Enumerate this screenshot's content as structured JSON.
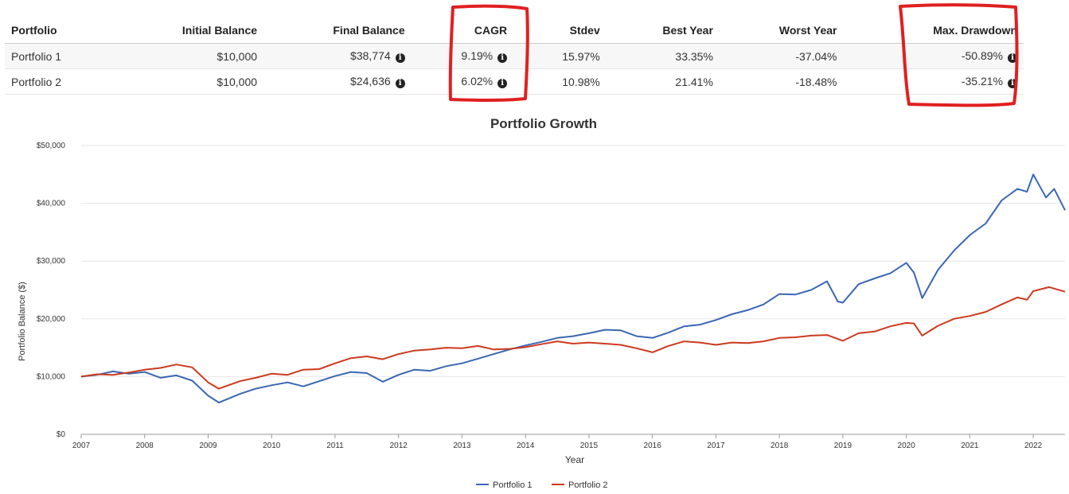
{
  "table": {
    "headers": [
      "Portfolio",
      "Initial Balance",
      "Final Balance",
      "CAGR",
      "Stdev",
      "Best Year",
      "Worst Year",
      "Max. Drawdown"
    ],
    "rows": [
      {
        "name": "Portfolio 1",
        "initial": "$10,000",
        "final": "$38,774",
        "cagr": "9.19%",
        "stdev": "15.97%",
        "best": "33.35%",
        "worst": "-37.04%",
        "maxdd": "-50.89%"
      },
      {
        "name": "Portfolio 2",
        "initial": "$10,000",
        "final": "$24,636",
        "cagr": "6.02%",
        "stdev": "10.98%",
        "best": "21.41%",
        "worst": "-18.48%",
        "maxdd": "-35.21%"
      }
    ]
  },
  "annotation_color": "#e02020",
  "chart_data": {
    "type": "line",
    "title": "Portfolio Growth",
    "xlabel": "Year",
    "ylabel": "Portfolio Balance ($)",
    "xlim": [
      2007,
      2022.5
    ],
    "ylim": [
      0,
      50000
    ],
    "x_ticks": [
      2007,
      2008,
      2009,
      2010,
      2011,
      2012,
      2013,
      2014,
      2015,
      2016,
      2017,
      2018,
      2019,
      2020,
      2021,
      2022
    ],
    "y_ticks": [
      0,
      10000,
      20000,
      30000,
      40000,
      50000
    ],
    "y_tick_labels": [
      "$0",
      "$10,000",
      "$20,000",
      "$30,000",
      "$40,000",
      "$50,000"
    ],
    "grid": true,
    "legend_position": "bottom-center",
    "series": [
      {
        "name": "Portfolio 1",
        "color": "#3a67b4",
        "points": [
          [
            2007.0,
            10000
          ],
          [
            2007.25,
            10300
          ],
          [
            2007.5,
            10900
          ],
          [
            2007.75,
            10500
          ],
          [
            2008.0,
            10800
          ],
          [
            2008.25,
            9800
          ],
          [
            2008.5,
            10200
          ],
          [
            2008.75,
            9300
          ],
          [
            2009.0,
            6700
          ],
          [
            2009.17,
            5500
          ],
          [
            2009.5,
            7000
          ],
          [
            2009.75,
            7900
          ],
          [
            2010.0,
            8500
          ],
          [
            2010.25,
            9000
          ],
          [
            2010.5,
            8300
          ],
          [
            2010.75,
            9200
          ],
          [
            2011.0,
            10100
          ],
          [
            2011.25,
            10800
          ],
          [
            2011.5,
            10600
          ],
          [
            2011.75,
            9100
          ],
          [
            2012.0,
            10300
          ],
          [
            2012.25,
            11200
          ],
          [
            2012.5,
            11000
          ],
          [
            2012.75,
            11800
          ],
          [
            2013.0,
            12300
          ],
          [
            2013.25,
            13100
          ],
          [
            2013.5,
            13900
          ],
          [
            2013.75,
            14700
          ],
          [
            2014.0,
            15400
          ],
          [
            2014.25,
            16000
          ],
          [
            2014.5,
            16700
          ],
          [
            2014.75,
            17000
          ],
          [
            2015.0,
            17500
          ],
          [
            2015.25,
            18100
          ],
          [
            2015.5,
            18000
          ],
          [
            2015.75,
            17000
          ],
          [
            2016.0,
            16700
          ],
          [
            2016.25,
            17600
          ],
          [
            2016.5,
            18700
          ],
          [
            2016.75,
            19000
          ],
          [
            2017.0,
            19800
          ],
          [
            2017.25,
            20800
          ],
          [
            2017.5,
            21500
          ],
          [
            2017.75,
            22500
          ],
          [
            2018.0,
            24300
          ],
          [
            2018.25,
            24200
          ],
          [
            2018.5,
            25000
          ],
          [
            2018.75,
            26500
          ],
          [
            2018.92,
            23000
          ],
          [
            2019.0,
            22800
          ],
          [
            2019.25,
            26000
          ],
          [
            2019.5,
            27000
          ],
          [
            2019.75,
            27900
          ],
          [
            2020.0,
            29700
          ],
          [
            2020.12,
            28000
          ],
          [
            2020.25,
            23600
          ],
          [
            2020.5,
            28500
          ],
          [
            2020.75,
            31800
          ],
          [
            2021.0,
            34500
          ],
          [
            2021.25,
            36500
          ],
          [
            2021.5,
            40500
          ],
          [
            2021.75,
            42500
          ],
          [
            2021.9,
            42000
          ],
          [
            2022.0,
            45000
          ],
          [
            2022.2,
            41000
          ],
          [
            2022.33,
            42500
          ],
          [
            2022.5,
            38800
          ]
        ]
      },
      {
        "name": "Portfolio 2",
        "color": "#cc3a1e",
        "points": [
          [
            2007.0,
            10000
          ],
          [
            2007.25,
            10400
          ],
          [
            2007.5,
            10300
          ],
          [
            2007.75,
            10700
          ],
          [
            2008.0,
            11200
          ],
          [
            2008.25,
            11500
          ],
          [
            2008.5,
            12100
          ],
          [
            2008.75,
            11600
          ],
          [
            2009.0,
            9000
          ],
          [
            2009.17,
            7900
          ],
          [
            2009.5,
            9200
          ],
          [
            2009.75,
            9800
          ],
          [
            2010.0,
            10500
          ],
          [
            2010.25,
            10300
          ],
          [
            2010.5,
            11200
          ],
          [
            2010.75,
            11300
          ],
          [
            2011.0,
            12300
          ],
          [
            2011.25,
            13200
          ],
          [
            2011.5,
            13500
          ],
          [
            2011.75,
            13000
          ],
          [
            2012.0,
            13900
          ],
          [
            2012.25,
            14500
          ],
          [
            2012.5,
            14700
          ],
          [
            2012.75,
            15000
          ],
          [
            2013.0,
            14900
          ],
          [
            2013.25,
            15300
          ],
          [
            2013.5,
            14700
          ],
          [
            2013.75,
            14800
          ],
          [
            2014.0,
            15100
          ],
          [
            2014.25,
            15600
          ],
          [
            2014.5,
            16100
          ],
          [
            2014.75,
            15700
          ],
          [
            2015.0,
            15900
          ],
          [
            2015.25,
            15700
          ],
          [
            2015.5,
            15500
          ],
          [
            2015.75,
            14900
          ],
          [
            2016.0,
            14200
          ],
          [
            2016.25,
            15300
          ],
          [
            2016.5,
            16100
          ],
          [
            2016.75,
            15900
          ],
          [
            2017.0,
            15500
          ],
          [
            2017.25,
            15900
          ],
          [
            2017.5,
            15800
          ],
          [
            2017.75,
            16100
          ],
          [
            2018.0,
            16700
          ],
          [
            2018.25,
            16800
          ],
          [
            2018.5,
            17100
          ],
          [
            2018.75,
            17200
          ],
          [
            2019.0,
            16200
          ],
          [
            2019.25,
            17500
          ],
          [
            2019.5,
            17800
          ],
          [
            2019.75,
            18700
          ],
          [
            2020.0,
            19300
          ],
          [
            2020.12,
            19200
          ],
          [
            2020.25,
            17100
          ],
          [
            2020.5,
            18800
          ],
          [
            2020.75,
            20000
          ],
          [
            2021.0,
            20500
          ],
          [
            2021.25,
            21200
          ],
          [
            2021.5,
            22500
          ],
          [
            2021.75,
            23700
          ],
          [
            2021.9,
            23300
          ],
          [
            2022.0,
            24800
          ],
          [
            2022.25,
            25500
          ],
          [
            2022.5,
            24700
          ]
        ]
      }
    ]
  }
}
